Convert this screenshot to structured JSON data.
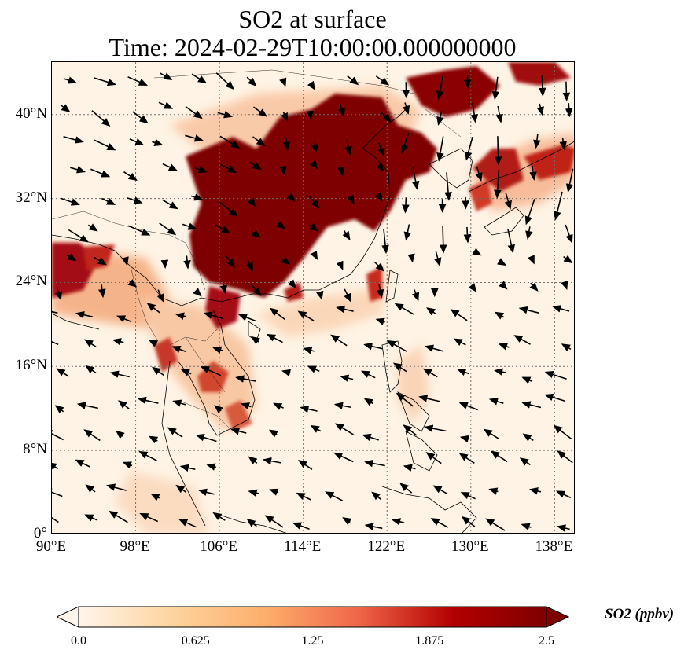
{
  "title_line1": "SO2 at surface",
  "title_line2": "Time: 2024-02-29T10:00:00.000000000",
  "map": {
    "lon_range": [
      90,
      140
    ],
    "lat_range": [
      0,
      45
    ],
    "lat_ticks": [
      {
        "value": 0,
        "label": "0°"
      },
      {
        "value": 8,
        "label": "8°N"
      },
      {
        "value": 16,
        "label": "16°N"
      },
      {
        "value": 24,
        "label": "24°N"
      },
      {
        "value": 32,
        "label": "32°N"
      },
      {
        "value": 40,
        "label": "40°N"
      }
    ],
    "lon_ticks": [
      {
        "value": 90,
        "label": "90°E"
      },
      {
        "value": 98,
        "label": "98°E"
      },
      {
        "value": 106,
        "label": "106°E"
      },
      {
        "value": 114,
        "label": "114°E"
      },
      {
        "value": 122,
        "label": "122°E"
      },
      {
        "value": 130,
        "label": "130°E"
      },
      {
        "value": 138,
        "label": "138°E"
      }
    ],
    "gridlines": "dotted",
    "colormap": [
      "#fff5eb",
      "#fdd49e",
      "#fdae6b",
      "#ef6548",
      "#d7301f",
      "#990000",
      "#7f0000"
    ]
  },
  "colorbar": {
    "label": "SO2 (ppbv)",
    "ticks": [
      "0.0",
      "0.625",
      "1.25",
      "1.875",
      "2.5"
    ],
    "range": [
      0,
      2.5
    ],
    "extend": "both"
  }
}
